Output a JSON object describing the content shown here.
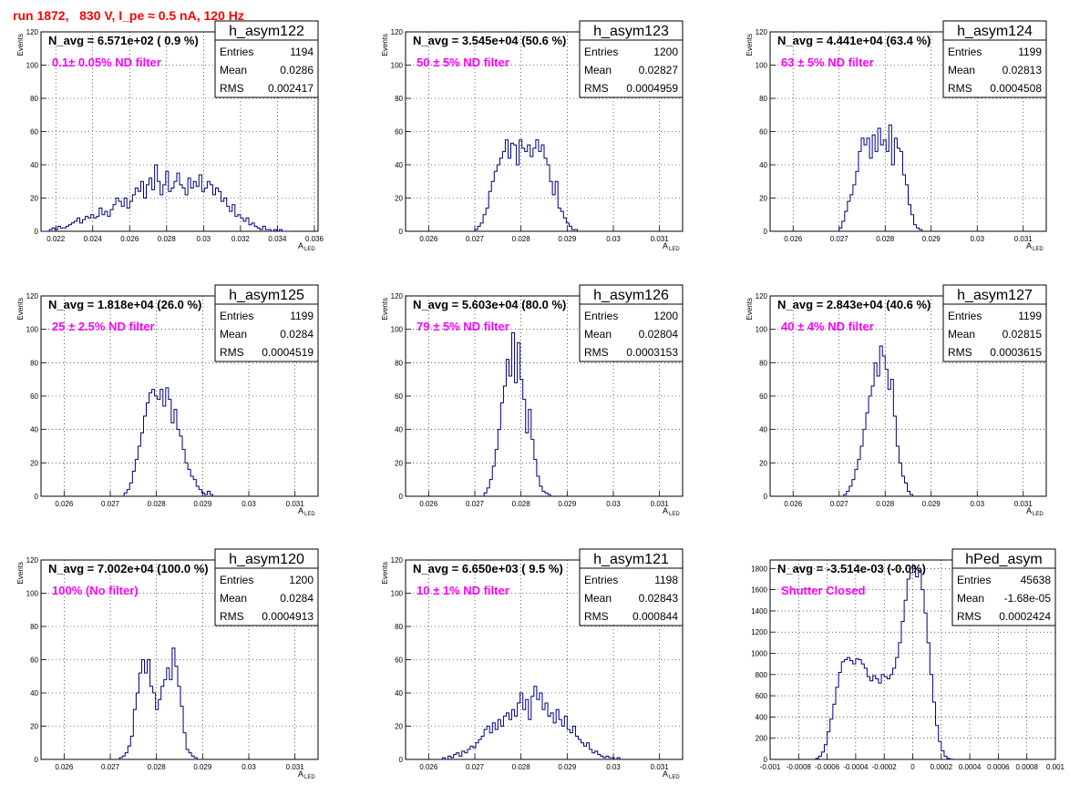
{
  "page": {
    "title": "run 1872,   830 V, I_pe ≈ 0.5 nA, 120 Hz",
    "title_color": "#ff0000",
    "hist_color": "#00007f",
    "annotation_color": "#ff00ff"
  },
  "chart_data": [
    {
      "type": "bar",
      "hist_name": "h_asym122",
      "navg": "N_avg = 6.571e+02 ( 0.9 %)",
      "filter": "0.1± 0.05% ND filter",
      "stats": [
        {
          "label": "Entries",
          "value": "1194"
        },
        {
          "label": "Mean",
          "value": "0.0286"
        },
        {
          "label": "RMS",
          "value": "0.002417"
        }
      ],
      "ylabel": "Events",
      "xlabel": "A",
      "xlabel_sub": "LED",
      "xlim": [
        0.0212,
        0.0362
      ],
      "ylim": [
        0,
        120
      ],
      "xticks": [
        0.022,
        0.024,
        0.026,
        0.028,
        0.03,
        0.032,
        0.034,
        0.036
      ],
      "xtick_labels": [
        "0.022",
        "0.024",
        "0.026",
        "0.028",
        "0.03",
        "0.032",
        "0.034",
        "0.036"
      ],
      "yticks": [
        0,
        20,
        40,
        60,
        80,
        100,
        120
      ],
      "ytick_labels": [
        "0",
        "20",
        "40",
        "60",
        "80",
        "100",
        "120"
      ],
      "bin_start": 0.0212,
      "bin_width": 0.00015,
      "values": [
        0,
        0,
        0,
        1,
        2,
        1,
        3,
        2,
        2,
        3,
        4,
        5,
        6,
        8,
        5,
        7,
        9,
        8,
        10,
        8,
        9,
        14,
        10,
        12,
        9,
        13,
        16,
        20,
        18,
        15,
        20,
        14,
        18,
        22,
        26,
        24,
        30,
        20,
        28,
        32,
        25,
        40,
        30,
        22,
        28,
        36,
        24,
        26,
        30,
        35,
        28,
        26,
        22,
        32,
        26,
        30,
        27,
        34,
        24,
        26,
        30,
        28,
        22,
        26,
        24,
        18,
        20,
        15,
        12,
        16,
        9,
        10,
        8,
        6,
        8,
        4,
        5,
        3,
        2,
        1,
        3,
        1,
        1,
        0,
        1,
        0,
        1,
        0,
        0,
        0
      ]
    },
    {
      "type": "bar",
      "hist_name": "h_asym123",
      "navg": "N_avg = 3.545e+04 (50.6 %)",
      "filter": "50 ± 5% ND filter",
      "stats": [
        {
          "label": "Entries",
          "value": "1200"
        },
        {
          "label": "Mean",
          "value": "0.02827"
        },
        {
          "label": "RMS",
          "value": "0.0004959"
        }
      ],
      "ylabel": "Events",
      "xlabel": "A",
      "xlabel_sub": "LED",
      "xlim": [
        0.0255,
        0.0315
      ],
      "ylim": [
        0,
        120
      ],
      "xticks": [
        0.026,
        0.027,
        0.028,
        0.029,
        0.03,
        0.031
      ],
      "xtick_labels": [
        "0.026",
        "0.027",
        "0.028",
        "0.029",
        "0.03",
        "0.031"
      ],
      "yticks": [
        0,
        20,
        40,
        60,
        80,
        100,
        120
      ],
      "ytick_labels": [
        "0",
        "20",
        "40",
        "60",
        "80",
        "100",
        "120"
      ],
      "bin_start": 0.027,
      "bin_width": 6e-05,
      "values": [
        1,
        3,
        5,
        10,
        14,
        24,
        30,
        36,
        40,
        44,
        48,
        55,
        44,
        53,
        52,
        40,
        55,
        50,
        48,
        52,
        45,
        50,
        55,
        48,
        52,
        44,
        40,
        30,
        22,
        30,
        14,
        12,
        8,
        5,
        3,
        1,
        1
      ]
    },
    {
      "type": "bar",
      "hist_name": "h_asym124",
      "navg": "N_avg = 4.441e+04 (63.4 %)",
      "filter": "63 ± 5% ND filter",
      "stats": [
        {
          "label": "Entries",
          "value": "1199"
        },
        {
          "label": "Mean",
          "value": "0.02813"
        },
        {
          "label": "RMS",
          "value": "0.0004508"
        }
      ],
      "ylabel": "Events",
      "xlabel": "A",
      "xlabel_sub": "LED",
      "xlim": [
        0.0255,
        0.0315
      ],
      "ylim": [
        0,
        120
      ],
      "xticks": [
        0.026,
        0.027,
        0.028,
        0.029,
        0.03,
        0.031
      ],
      "xtick_labels": [
        "0.026",
        "0.027",
        "0.028",
        "0.029",
        "0.03",
        "0.031"
      ],
      "yticks": [
        0,
        20,
        40,
        60,
        80,
        100,
        120
      ],
      "ytick_labels": [
        "0",
        "20",
        "40",
        "60",
        "80",
        "100",
        "120"
      ],
      "bin_start": 0.027,
      "bin_width": 6e-05,
      "values": [
        2,
        6,
        12,
        18,
        22,
        28,
        36,
        48,
        56,
        52,
        56,
        44,
        58,
        48,
        62,
        52,
        55,
        48,
        64,
        40,
        56,
        50,
        48,
        34,
        28,
        16,
        10,
        4,
        2,
        1
      ]
    },
    {
      "type": "bar",
      "hist_name": "h_asym125",
      "navg": "N_avg = 1.818e+04 (26.0 %)",
      "filter": "25 ± 2.5% ND filter",
      "stats": [
        {
          "label": "Entries",
          "value": "1199"
        },
        {
          "label": "Mean",
          "value": "0.0284"
        },
        {
          "label": "RMS",
          "value": "0.0004519"
        }
      ],
      "ylabel": "Events",
      "xlabel": "A",
      "xlabel_sub": "LED",
      "xlim": [
        0.0255,
        0.0315
      ],
      "ylim": [
        0,
        120
      ],
      "xticks": [
        0.026,
        0.027,
        0.028,
        0.029,
        0.03,
        0.031
      ],
      "xtick_labels": [
        "0.026",
        "0.027",
        "0.028",
        "0.029",
        "0.03",
        "0.031"
      ],
      "yticks": [
        0,
        20,
        40,
        60,
        80,
        100,
        120
      ],
      "ytick_labels": [
        "0",
        "20",
        "40",
        "60",
        "80",
        "100",
        "120"
      ],
      "bin_start": 0.0273,
      "bin_width": 6e-05,
      "values": [
        2,
        4,
        8,
        15,
        22,
        30,
        38,
        48,
        56,
        62,
        64,
        60,
        58,
        64,
        54,
        65,
        58,
        44,
        52,
        40,
        36,
        28,
        20,
        16,
        12,
        10,
        6,
        4,
        2,
        1,
        3,
        1
      ]
    },
    {
      "type": "bar",
      "hist_name": "h_asym126",
      "navg": "N_avg = 5.603e+04 (80.0 %)",
      "filter": "79 ± 5% ND filter",
      "stats": [
        {
          "label": "Entries",
          "value": "1200"
        },
        {
          "label": "Mean",
          "value": "0.02804"
        },
        {
          "label": "RMS",
          "value": "0.0003153"
        }
      ],
      "ylabel": "Events",
      "xlabel": "A",
      "xlabel_sub": "LED",
      "xlim": [
        0.0255,
        0.0315
      ],
      "ylim": [
        0,
        120
      ],
      "xticks": [
        0.026,
        0.027,
        0.028,
        0.029,
        0.03,
        0.031
      ],
      "xtick_labels": [
        "0.026",
        "0.027",
        "0.028",
        "0.029",
        "0.03",
        "0.031"
      ],
      "yticks": [
        0,
        20,
        40,
        60,
        80,
        100,
        120
      ],
      "ytick_labels": [
        "0",
        "20",
        "40",
        "60",
        "80",
        "100",
        "120"
      ],
      "bin_start": 0.0272,
      "bin_width": 6e-05,
      "values": [
        2,
        5,
        10,
        18,
        28,
        40,
        56,
        66,
        82,
        72,
        98,
        68,
        92,
        70,
        58,
        38,
        52,
        34,
        22,
        12,
        6,
        3,
        2,
        1
      ]
    },
    {
      "type": "bar",
      "hist_name": "h_asym127",
      "navg": "N_avg = 2.843e+04 (40.6 %)",
      "filter": "40 ± 4% ND filter",
      "stats": [
        {
          "label": "Entries",
          "value": "1199"
        },
        {
          "label": "Mean",
          "value": "0.02815"
        },
        {
          "label": "RMS",
          "value": "0.0003615"
        }
      ],
      "ylabel": "Events",
      "xlabel": "A",
      "xlabel_sub": "LED",
      "xlim": [
        0.0255,
        0.0315
      ],
      "ylim": [
        0,
        120
      ],
      "xticks": [
        0.026,
        0.027,
        0.028,
        0.029,
        0.03,
        0.031
      ],
      "xtick_labels": [
        "0.026",
        "0.027",
        "0.028",
        "0.029",
        "0.03",
        "0.031"
      ],
      "yticks": [
        0,
        20,
        40,
        60,
        80,
        100,
        120
      ],
      "ytick_labels": [
        "0",
        "20",
        "40",
        "60",
        "80",
        "100",
        "120"
      ],
      "bin_start": 0.0271,
      "bin_width": 6e-05,
      "values": [
        1,
        3,
        6,
        10,
        16,
        22,
        30,
        40,
        50,
        60,
        66,
        80,
        72,
        90,
        84,
        76,
        64,
        70,
        48,
        30,
        20,
        12,
        8,
        3,
        1
      ]
    },
    {
      "type": "bar",
      "hist_name": "h_asym120",
      "navg": "N_avg = 7.002e+04 (100.0 %)",
      "filter": "100% (No filter)",
      "stats": [
        {
          "label": "Entries",
          "value": "1200"
        },
        {
          "label": "Mean",
          "value": "0.0284"
        },
        {
          "label": "RMS",
          "value": "0.0004913"
        }
      ],
      "ylabel": "Events",
      "xlabel": "A",
      "xlabel_sub": "LED",
      "xlim": [
        0.0255,
        0.0315
      ],
      "ylim": [
        0,
        120
      ],
      "xticks": [
        0.026,
        0.027,
        0.028,
        0.029,
        0.03,
        0.031
      ],
      "xtick_labels": [
        "0.026",
        "0.027",
        "0.028",
        "0.029",
        "0.03",
        "0.031"
      ],
      "yticks": [
        0,
        20,
        40,
        60,
        80,
        100,
        120
      ],
      "ytick_labels": [
        "0",
        "20",
        "40",
        "60",
        "80",
        "100",
        "120"
      ],
      "bin_start": 0.0272,
      "bin_width": 6e-05,
      "values": [
        1,
        2,
        4,
        8,
        14,
        30,
        40,
        52,
        60,
        52,
        60,
        44,
        40,
        30,
        36,
        44,
        48,
        55,
        48,
        67,
        56,
        44,
        32,
        16,
        6,
        4,
        2,
        1
      ]
    },
    {
      "type": "bar",
      "hist_name": "h_asym121",
      "navg": "N_avg = 6.650e+03 ( 9.5 %)",
      "filter": "10 ± 1% ND filter",
      "stats": [
        {
          "label": "Entries",
          "value": "1198"
        },
        {
          "label": "Mean",
          "value": "0.02843"
        },
        {
          "label": "RMS",
          "value": "0.000844"
        }
      ],
      "ylabel": "Events",
      "xlabel": "A",
      "xlabel_sub": "LED",
      "xlim": [
        0.0255,
        0.0315
      ],
      "ylim": [
        0,
        120
      ],
      "xticks": [
        0.026,
        0.027,
        0.028,
        0.029,
        0.03,
        0.031
      ],
      "xtick_labels": [
        "0.026",
        "0.027",
        "0.028",
        "0.029",
        "0.03",
        "0.031"
      ],
      "yticks": [
        0,
        20,
        40,
        60,
        80,
        100,
        120
      ],
      "ytick_labels": [
        "0",
        "20",
        "40",
        "60",
        "80",
        "100",
        "120"
      ],
      "bin_start": 0.0263,
      "bin_width": 6e-05,
      "values": [
        1,
        0,
        2,
        1,
        3,
        4,
        2,
        5,
        4,
        6,
        8,
        7,
        10,
        12,
        14,
        18,
        20,
        16,
        22,
        18,
        24,
        20,
        26,
        28,
        24,
        30,
        26,
        34,
        40,
        30,
        36,
        24,
        38,
        44,
        36,
        40,
        30,
        34,
        26,
        28,
        22,
        30,
        24,
        20,
        26,
        18,
        16,
        20,
        14,
        12,
        10,
        8,
        10,
        6,
        4,
        5,
        3,
        2,
        1,
        2,
        1,
        1,
        0,
        1
      ]
    },
    {
      "type": "bar",
      "hist_name": "hPed_asym",
      "navg": "N_avg = -3.514e-03 (-0.0%)",
      "filter": "Shutter Closed",
      "stats": [
        {
          "label": "Entries",
          "value": "45638"
        },
        {
          "label": "Mean",
          "value": "-1.68e-05"
        },
        {
          "label": "RMS",
          "value": "0.0002424"
        }
      ],
      "ylabel": "",
      "xlabel": "",
      "xlabel_sub": "",
      "xlim": [
        -0.001,
        0.001
      ],
      "ylim": [
        0,
        1880
      ],
      "xticks": [
        -0.001,
        -0.0008,
        -0.0006,
        -0.0004,
        -0.0002,
        0,
        0.0002,
        0.0004,
        0.0006,
        0.0008,
        0.001
      ],
      "xtick_labels": [
        "-0.001",
        "-0.0008",
        "-0.0006",
        "-0.0004",
        "-0.0002",
        "0",
        "0.0002",
        "0.0004",
        "0.0006",
        "0.0008",
        "0.001"
      ],
      "yticks": [
        0,
        200,
        400,
        600,
        800,
        1000,
        1200,
        1400,
        1600,
        1800
      ],
      "ytick_labels": [
        "0",
        "200",
        "400",
        "600",
        "800",
        "1000",
        "1200",
        "1400",
        "1600",
        "1800"
      ],
      "bin_start": -0.00068,
      "bin_width": 2e-05,
      "values": [
        10,
        30,
        70,
        140,
        260,
        380,
        520,
        680,
        820,
        920,
        940,
        960,
        930,
        900,
        950,
        940,
        900,
        860,
        780,
        740,
        790,
        760,
        720,
        800,
        780,
        760,
        800,
        860,
        960,
        1100,
        1300,
        1500,
        1700,
        1760,
        1820,
        1720,
        1780,
        1600,
        1380,
        1100,
        800,
        540,
        320,
        170,
        80,
        30,
        10,
        2
      ]
    }
  ]
}
